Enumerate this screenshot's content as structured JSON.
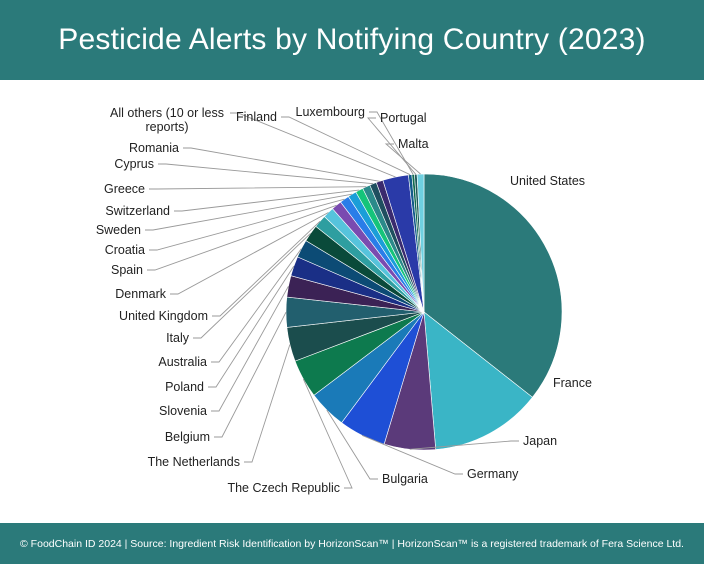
{
  "header": {
    "title": "Pesticide Alerts by Notifying Country (2023)"
  },
  "footer": {
    "text": "© FoodChain ID 2024 | Source: Ingredient Risk Identification by HorizonScan™ | HorizonScan™ is a registered trademark of Fera Science Ltd."
  },
  "chart_data": {
    "type": "pie",
    "title": "Pesticide Alerts by Notifying Country (2023)",
    "legend": "none",
    "slices": [
      {
        "label": "United States",
        "value": 35.5,
        "color": "#2b7a7a"
      },
      {
        "label": "France",
        "value": 13.0,
        "color": "#3ab5c6"
      },
      {
        "label": "Japan",
        "value": 6.0,
        "color": "#5b3a7a"
      },
      {
        "label": "Germany",
        "value": 5.5,
        "color": "#1e4fd6"
      },
      {
        "label": "Bulgaria",
        "value": 4.5,
        "color": "#1a7ab8"
      },
      {
        "label": "The Czech Republic",
        "value": 4.5,
        "color": "#0d7a4e"
      },
      {
        "label": "The Netherlands",
        "value": 4.0,
        "color": "#1b4d4d"
      },
      {
        "label": "Belgium",
        "value": 3.5,
        "color": "#225f6e"
      },
      {
        "label": "Slovenia",
        "value": 2.5,
        "color": "#3b2255"
      },
      {
        "label": "Poland",
        "value": 2.3,
        "color": "#1a2f86"
      },
      {
        "label": "Australia",
        "value": 2.1,
        "color": "#0c4b75"
      },
      {
        "label": "Italy",
        "value": 2.0,
        "color": "#0a4a3a"
      },
      {
        "label": "United Kingdom",
        "value": 1.5,
        "color": "#2e9ea0"
      },
      {
        "label": "Denmark",
        "value": 1.3,
        "color": "#56c3dc"
      },
      {
        "label": "Spain",
        "value": 1.2,
        "color": "#7a4bb0"
      },
      {
        "label": "Croatia",
        "value": 1.1,
        "color": "#2a7de8"
      },
      {
        "label": "Sweden",
        "value": 1.0,
        "color": "#1a9ed8"
      },
      {
        "label": "Switzerland",
        "value": 0.9,
        "color": "#15c47a"
      },
      {
        "label": "Greece",
        "value": 0.9,
        "color": "#2b8a8a"
      },
      {
        "label": "Cyprus",
        "value": 0.8,
        "color": "#1f4f5f"
      },
      {
        "label": "Romania",
        "value": 0.8,
        "color": "#3a2a6e"
      },
      {
        "label": "All others (10 or less reports)",
        "value": 3.0,
        "color": "#2a3aa8"
      },
      {
        "label": "Finland",
        "value": 0.4,
        "color": "#125a8a"
      },
      {
        "label": "Luxembourg",
        "value": 0.3,
        "color": "#0f6b4f"
      },
      {
        "label": "Portugal",
        "value": 0.3,
        "color": "#1d5a5a"
      },
      {
        "label": "Malta",
        "value": 0.8,
        "color": "#6fd0e0"
      }
    ]
  }
}
